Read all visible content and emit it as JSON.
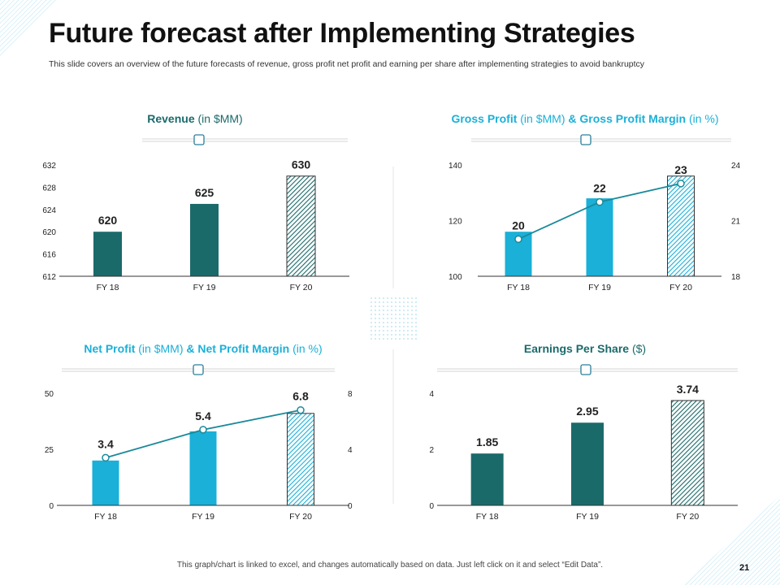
{
  "title": "Future forecast after Implementing Strategies",
  "subtitle": "This slide covers an overview of the future forecasts of revenue, gross profit net profit and earning per share after implementing strategies to avoid bankruptcy",
  "footer": "This graph/chart is linked to excel, and changes automatically based on data. Just left click on it and select “Edit Data”.",
  "page_number": "21",
  "colors": {
    "dark_teal": "#1b6a6a",
    "light_blue": "#1ab0d8",
    "line": "#1b8a9a"
  },
  "chart_data": [
    {
      "id": "revenue",
      "type": "bar",
      "title_bold": "Revenue",
      "title_unit": "(in $MM)",
      "categories": [
        "FY 18",
        "FY 19",
        "FY 20"
      ],
      "values": [
        620,
        625,
        630
      ],
      "labels": [
        "620",
        "625",
        "630"
      ],
      "ylim": [
        612,
        632
      ],
      "yticks": [
        "612",
        "616",
        "620",
        "624",
        "628",
        "632"
      ],
      "bar_styles": [
        "solid",
        "solid",
        "hatched"
      ],
      "bar_color": "#1b6a6a"
    },
    {
      "id": "gross",
      "type": "bar",
      "title_bold": "Gross Profit",
      "title_unit": "(in $MM)",
      "title_bold2": "& Gross Profit Margin",
      "title_unit2": "(in %)",
      "categories": [
        "FY 18",
        "FY 19",
        "FY 20"
      ],
      "values": [
        116,
        128,
        136
      ],
      "ylim": [
        100,
        140
      ],
      "yticks": [
        "100",
        "120",
        "140"
      ],
      "line_values": [
        20,
        22,
        23
      ],
      "line_labels": [
        "20",
        "22",
        "23"
      ],
      "y2lim": [
        18,
        24
      ],
      "y2ticks": [
        "18",
        "21",
        "24"
      ],
      "bar_styles": [
        "solid",
        "solid",
        "hatched"
      ],
      "bar_color": "#1ab0d8"
    },
    {
      "id": "net",
      "type": "bar",
      "title_bold": "Net Profit",
      "title_unit": "(in $MM)",
      "title_bold2": "& Net Profit Margin",
      "title_unit2": "(in %)",
      "categories": [
        "FY 18",
        "FY 19",
        "FY 20"
      ],
      "values": [
        20,
        33,
        41
      ],
      "ylim": [
        0,
        50
      ],
      "yticks": [
        "0",
        "25",
        "50"
      ],
      "line_values": [
        3.4,
        5.4,
        6.8
      ],
      "line_labels": [
        "3.4",
        "5.4",
        "6.8"
      ],
      "y2lim": [
        0,
        8
      ],
      "y2ticks": [
        "0",
        "4",
        "8"
      ],
      "bar_styles": [
        "solid",
        "solid",
        "hatched"
      ],
      "bar_color": "#1ab0d8"
    },
    {
      "id": "eps",
      "type": "bar",
      "title_bold": "Earnings Per Share",
      "title_unit": "($)",
      "categories": [
        "FY 18",
        "FY 19",
        "FY 20"
      ],
      "values": [
        1.85,
        2.95,
        3.74
      ],
      "labels": [
        "1.85",
        "2.95",
        "3.74"
      ],
      "ylim": [
        0,
        4
      ],
      "yticks": [
        "0",
        "2",
        "4"
      ],
      "bar_styles": [
        "solid",
        "solid",
        "hatched"
      ],
      "bar_color": "#1b6a6a"
    }
  ]
}
